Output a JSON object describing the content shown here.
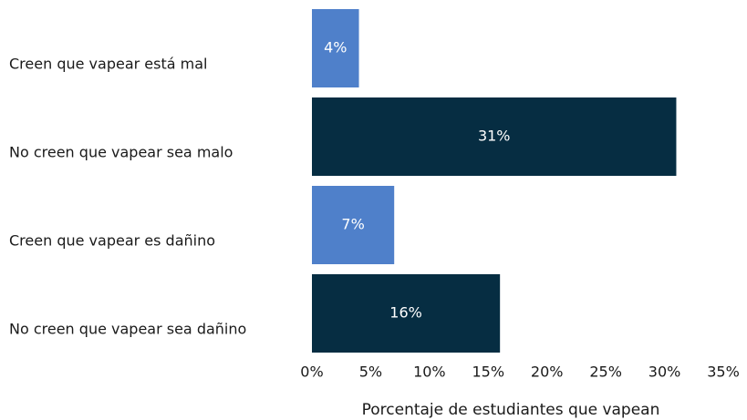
{
  "chart_data": {
    "type": "bar",
    "orientation": "horizontal",
    "categories": [
      "Creen que vapear está mal",
      "No creen que vapear sea malo",
      "Creen que vapear es dañino",
      "No creen que vapear sea dañino"
    ],
    "values": [
      4,
      31,
      7,
      16
    ],
    "value_labels": [
      "4%",
      "31%",
      "7%",
      "16%"
    ],
    "colors": [
      "#4f80ca",
      "#062d42",
      "#4f80ca",
      "#062d42"
    ],
    "xlabel": "Porcentaje de estudiantes que vapean",
    "xlim": [
      0,
      35
    ],
    "xticks": [
      {
        "value": 0,
        "label": "0%"
      },
      {
        "value": 5,
        "label": "5%"
      },
      {
        "value": 10,
        "label": "10%"
      },
      {
        "value": 15,
        "label": "15%"
      },
      {
        "value": 20,
        "label": "20%"
      },
      {
        "value": 25,
        "label": "25%"
      },
      {
        "value": 30,
        "label": "30%"
      },
      {
        "value": 35,
        "label": "35%"
      }
    ],
    "grid": false
  }
}
